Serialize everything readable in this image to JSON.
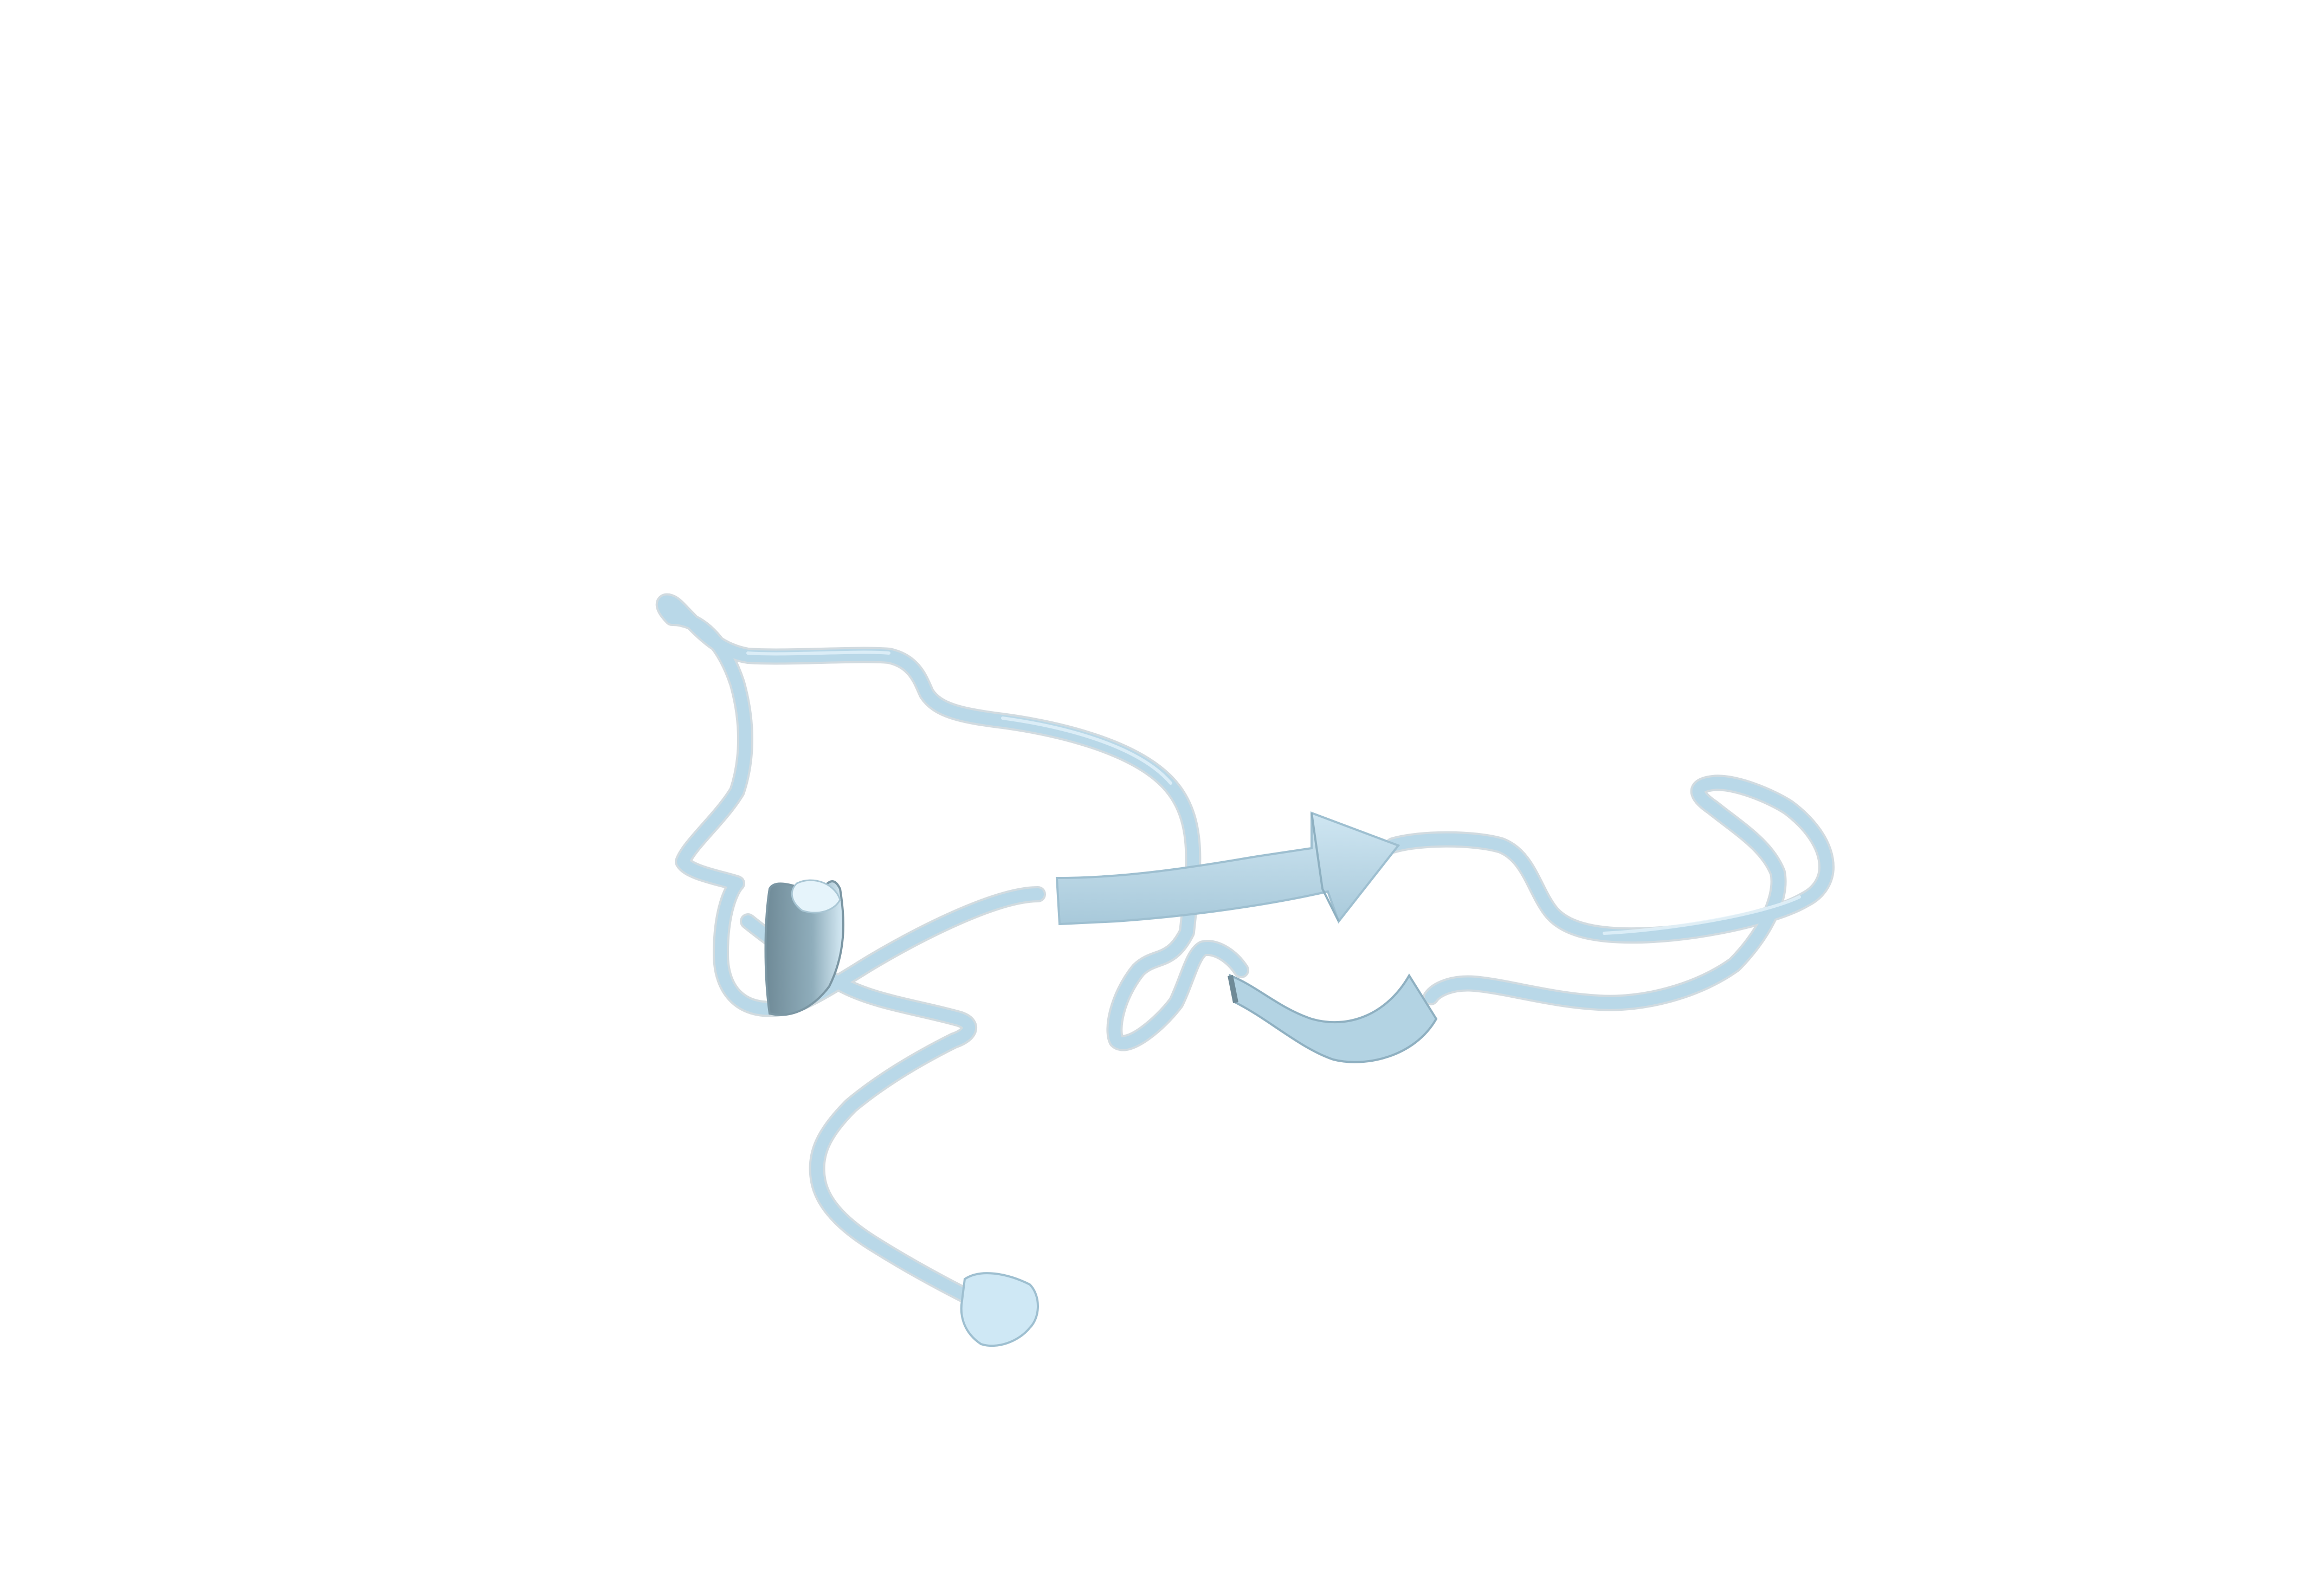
{
  "scene": {
    "background_color": "#ffffff",
    "structure_color": "#b9d8e8",
    "shadow_color": "#7f99a6",
    "highlight_color": "#e6f4fb",
    "representation": "cartoon-ribbon"
  }
}
